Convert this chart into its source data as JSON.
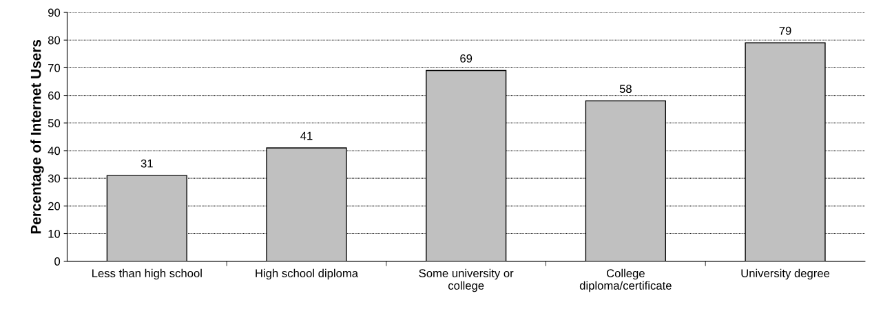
{
  "chart_data": {
    "type": "bar",
    "ylabel": "Percentage of Internet Users",
    "categories": [
      "Less than high school",
      "High school diploma",
      "Some university or\ncollege",
      "College\ndiploma/certificate",
      "University degree"
    ],
    "values": [
      31,
      41,
      69,
      58,
      79
    ],
    "color": "#c0c0c0",
    "ylim": [
      0,
      90
    ],
    "yticks": [
      0,
      10,
      20,
      30,
      40,
      50,
      60,
      70,
      80,
      90
    ],
    "grid": "y",
    "data_labels": true
  }
}
